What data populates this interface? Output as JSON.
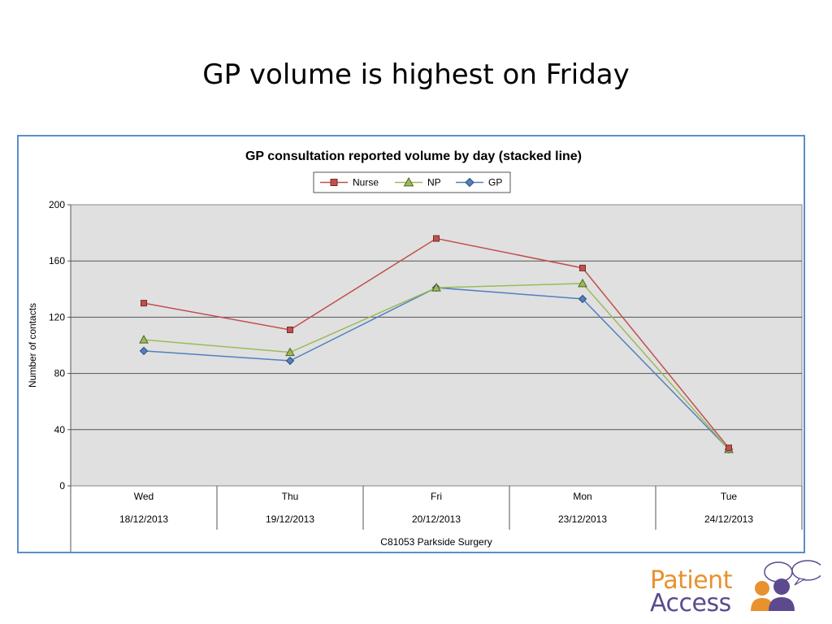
{
  "slide": {
    "title": "GP volume is highest on Friday"
  },
  "logo": {
    "line1": "Patient",
    "line2": "Access"
  },
  "colors": {
    "nurse": "#c0504d",
    "np": "#9bbb59",
    "gp": "#4f81bd",
    "plot_bg": "#e0e0e0",
    "frame": "#5b8ec9",
    "logo_orange": "#e8912d",
    "logo_purple": "#5d4a8e"
  },
  "chart_data": {
    "type": "line",
    "title": "GP consultation reported volume by day (stacked line)",
    "ylabel": "Number of contacts",
    "ylim": [
      0,
      200
    ],
    "yticks": [
      0,
      40,
      80,
      120,
      160,
      200
    ],
    "grid": true,
    "legend_position": "top-center",
    "categories": [
      "Wed",
      "Thu",
      "Fri",
      "Mon",
      "Tue"
    ],
    "dates": [
      "18/12/2013",
      "19/12/2013",
      "20/12/2013",
      "23/12/2013",
      "24/12/2013"
    ],
    "group_label": "C81053 Parkside Surgery",
    "series": [
      {
        "name": "Nurse",
        "marker": "square",
        "values": [
          130,
          111,
          176,
          155,
          27
        ]
      },
      {
        "name": "NP",
        "marker": "triangle",
        "values": [
          104,
          95,
          141,
          144,
          26
        ]
      },
      {
        "name": "GP",
        "marker": "diamond",
        "values": [
          96,
          89,
          141,
          133,
          26
        ]
      }
    ]
  }
}
